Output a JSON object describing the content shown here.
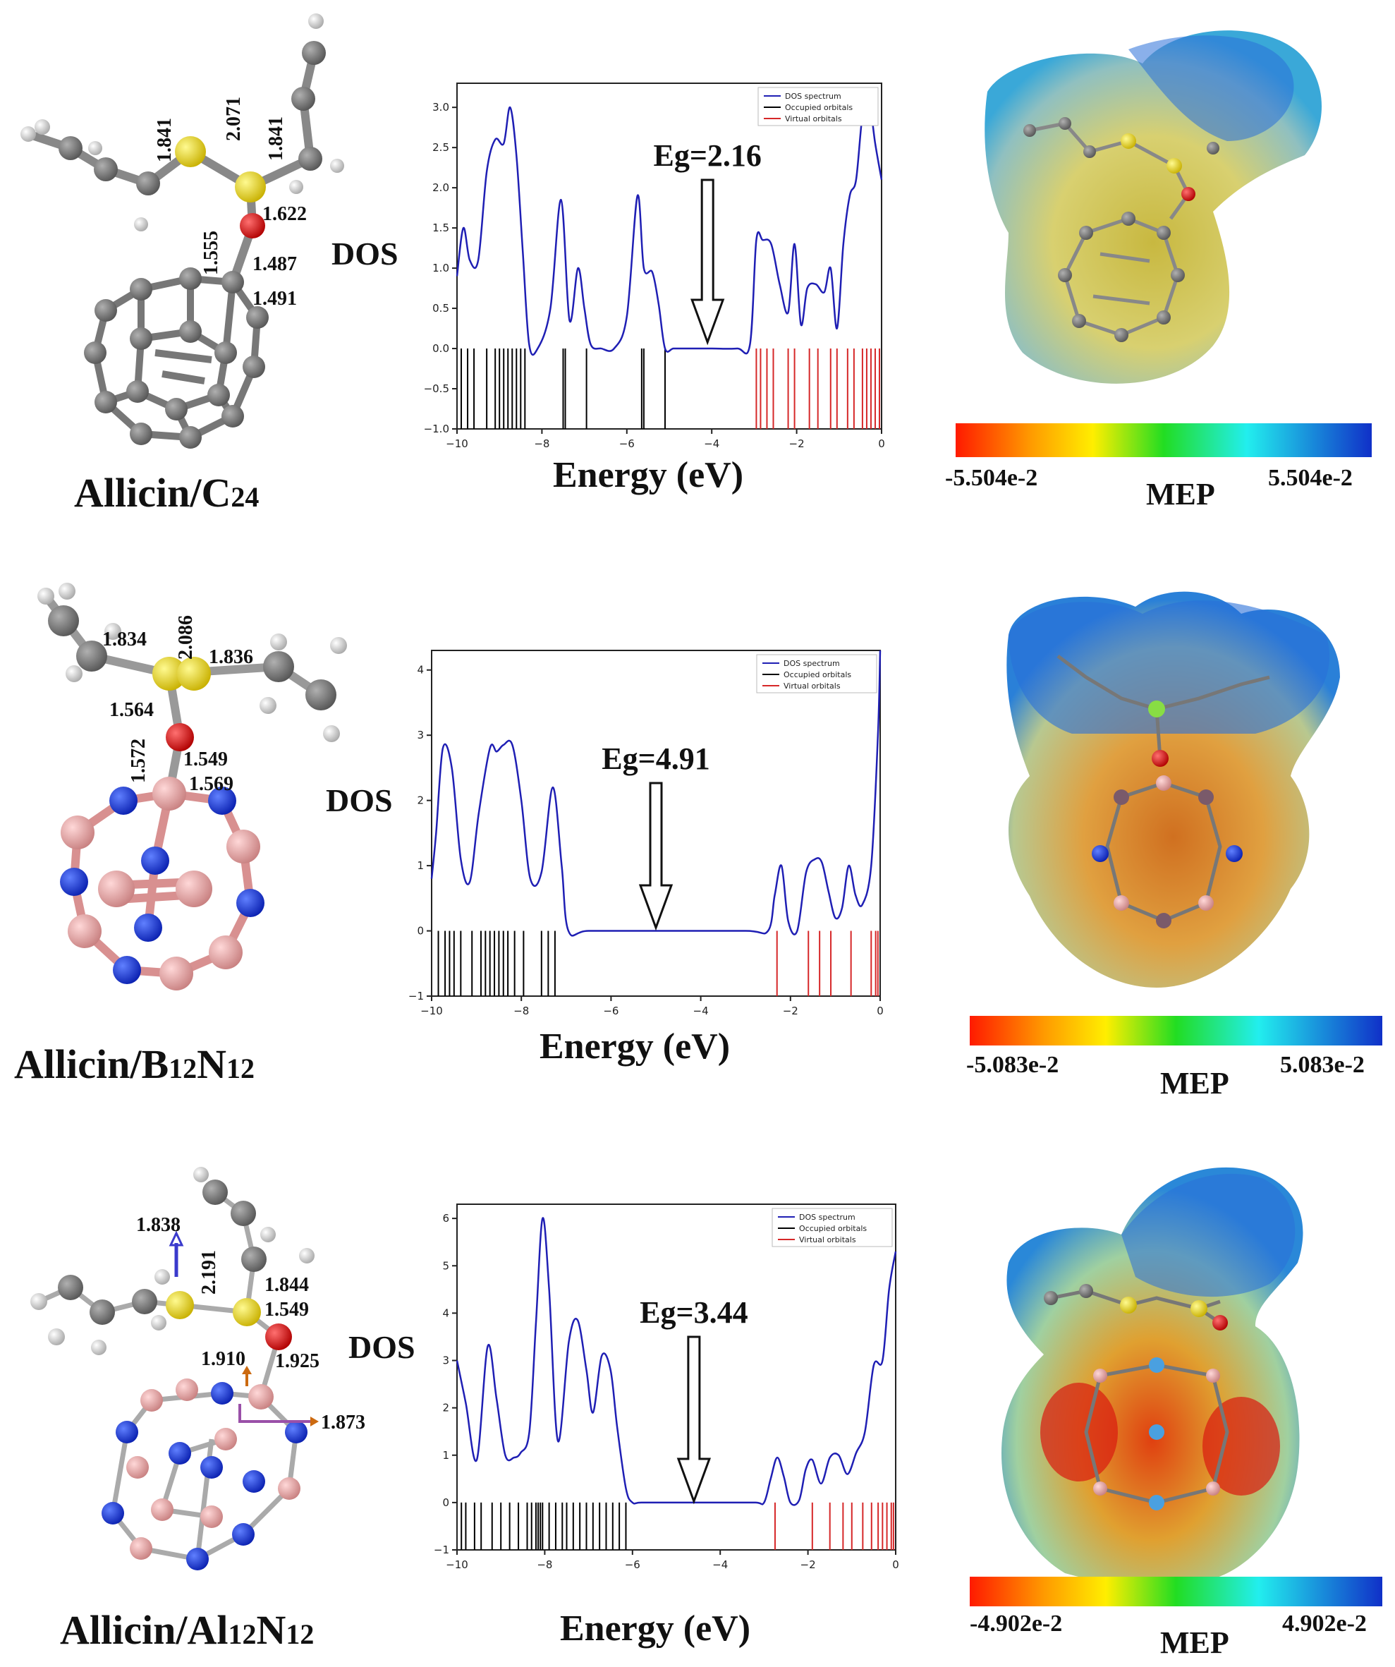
{
  "rows": [
    {
      "system": "Allicin/C24",
      "label_prefix": "Allicin/C",
      "label_sub": "24",
      "label_sub2": "",
      "bond_lengths": [
        "1.841",
        "2.071",
        "1.841",
        "1.622",
        "1.555",
        "1.487",
        "1.491"
      ],
      "dos_ylabel": "DOS",
      "dos_xlabel": "Energy (eV)",
      "eg_label": "Eg=2.16",
      "mep_min": "-5.504e-2",
      "mep_max": "5.504e-2",
      "mep_label": "MEP"
    },
    {
      "system": "Allicin/B12N12",
      "label_prefix": "Allicin/B",
      "label_sub": "12",
      "label_mid": "N",
      "label_sub2": "12",
      "bond_lengths": [
        "1.834",
        "2.086",
        "1.836",
        "1.564",
        "1.572",
        "1.549",
        "1.569"
      ],
      "dos_ylabel": "DOS",
      "dos_xlabel": "Energy (eV)",
      "eg_label": "Eg=4.91",
      "mep_min": "-5.083e-2",
      "mep_max": "5.083e-2",
      "mep_label": "MEP"
    },
    {
      "system": "Allicin/Al12N12",
      "label_prefix": "Allicin/Al",
      "label_sub": "12",
      "label_mid": "N",
      "label_sub2": "12",
      "bond_lengths": [
        "1.838",
        "2.191",
        "1.844",
        "1.549",
        "1.910",
        "1.925",
        "1.873"
      ],
      "dos_ylabel": "DOS",
      "dos_xlabel": "Energy (eV)",
      "eg_label": "Eg=3.44",
      "mep_min": "-4.902e-2",
      "mep_max": "4.902e-2",
      "mep_label": "MEP"
    }
  ],
  "legend": {
    "dos": "DOS spectrum",
    "occ": "Occupied orbitals",
    "virt": "Virtual orbitals"
  },
  "colors": {
    "dos_line": "#1f1fb4",
    "occupied": "#000000",
    "virtual": "#d62728",
    "carbon": "#707070",
    "sulfur": "#e8d62a",
    "oxygen": "#e01010",
    "boron": "#e8a6a6",
    "nitrogen": "#1a3fe0",
    "hydrogen": "#e8e8e8"
  },
  "chart_data": [
    {
      "type": "line",
      "title": "",
      "xlabel": "Energy (eV)",
      "ylabel": "DOS",
      "xlim": [
        -10,
        0
      ],
      "ylim": [
        -1.0,
        3.3
      ],
      "xticks": [
        -10,
        -8,
        -6,
        -4,
        -2,
        0
      ],
      "yticks": [
        -1.0,
        -0.5,
        0.0,
        0.5,
        1.0,
        1.5,
        2.0,
        2.5,
        3.0
      ],
      "ytick_labels": [
        "−1.0",
        "−0.5",
        "0.0",
        "0.5",
        "1.0",
        "1.5",
        "2.0",
        "2.5",
        "3.0"
      ],
      "gap_label": "Eg=2.16",
      "series": [
        {
          "name": "DOS spectrum",
          "x": [
            -10,
            -9.85,
            -9.7,
            -9.5,
            -9.3,
            -9.1,
            -8.9,
            -8.75,
            -8.6,
            -8.45,
            -8.3,
            -8.1,
            -7.8,
            -7.55,
            -7.35,
            -7.15,
            -7.0,
            -6.85,
            -6.6,
            -6.3,
            -6.0,
            -5.75,
            -5.6,
            -5.4,
            -5.25,
            -5.1,
            -4.9,
            -4.6,
            -4.0,
            -3.4,
            -3.1,
            -2.95,
            -2.8,
            -2.6,
            -2.4,
            -2.2,
            -2.05,
            -1.9,
            -1.75,
            -1.55,
            -1.35,
            -1.2,
            -1.05,
            -0.9,
            -0.75,
            -0.6,
            -0.45,
            -0.3,
            -0.15,
            0.0
          ],
          "y": [
            0.9,
            1.5,
            1.1,
            1.1,
            2.2,
            2.6,
            2.55,
            3.0,
            2.4,
            1.2,
            0.05,
            0.0,
            0.5,
            1.85,
            0.35,
            1.0,
            0.5,
            0.05,
            0.0,
            0.0,
            0.4,
            1.9,
            1.0,
            0.95,
            0.55,
            0.0,
            0.0,
            0.0,
            0.0,
            0.0,
            0.05,
            1.35,
            1.35,
            1.3,
            0.8,
            0.45,
            1.3,
            0.3,
            0.75,
            0.8,
            0.7,
            1.0,
            0.25,
            1.3,
            1.9,
            2.1,
            2.9,
            3.1,
            2.55,
            2.1
          ]
        },
        {
          "name": "Occupied orbitals",
          "x": [
            -9.9,
            -9.75,
            -9.6,
            -9.3,
            -9.1,
            -9.0,
            -8.9,
            -8.8,
            -8.7,
            -8.6,
            -8.5,
            -8.4,
            -7.5,
            -7.45,
            -6.95,
            -5.65,
            -5.6,
            -5.1
          ]
        },
        {
          "name": "Virtual orbitals",
          "x": [
            -2.95,
            -2.85,
            -2.7,
            -2.55,
            -2.2,
            -2.05,
            -1.7,
            -1.5,
            -1.2,
            -1.05,
            -0.8,
            -0.65,
            -0.45,
            -0.35,
            -0.25,
            -0.15,
            -0.05
          ]
        }
      ]
    },
    {
      "type": "line",
      "title": "",
      "xlabel": "Energy (eV)",
      "ylabel": "DOS",
      "xlim": [
        -10,
        0
      ],
      "ylim": [
        -1,
        4.3
      ],
      "xticks": [
        -10,
        -8,
        -6,
        -4,
        -2,
        0
      ],
      "yticks": [
        -1,
        0,
        1,
        2,
        3,
        4
      ],
      "ytick_labels": [
        "−1",
        "0",
        "1",
        "2",
        "3",
        "4"
      ],
      "gap_label": "Eg=4.91",
      "series": [
        {
          "name": "DOS spectrum",
          "x": [
            -10,
            -9.9,
            -9.75,
            -9.55,
            -9.35,
            -9.15,
            -8.95,
            -8.7,
            -8.55,
            -8.4,
            -8.2,
            -8.0,
            -7.8,
            -7.55,
            -7.3,
            -7.1,
            -6.95,
            -6.5,
            -5.0,
            -3.0,
            -2.5,
            -2.35,
            -2.2,
            -2.05,
            -1.85,
            -1.65,
            -1.45,
            -1.3,
            -1.15,
            -1.0,
            -0.85,
            -0.7,
            -0.55,
            -0.4,
            -0.2,
            -0.05,
            0.0
          ],
          "y": [
            0.8,
            1.5,
            2.8,
            2.5,
            1.1,
            0.75,
            1.8,
            2.8,
            2.75,
            2.85,
            2.85,
            2.0,
            0.8,
            0.9,
            2.2,
            1.0,
            0.0,
            0.0,
            0.0,
            0.0,
            0.0,
            0.55,
            1.0,
            0.15,
            0.0,
            0.9,
            1.1,
            1.05,
            0.6,
            0.2,
            0.35,
            1.0,
            0.55,
            0.4,
            1.0,
            3.0,
            4.3
          ]
        },
        {
          "name": "Occupied orbitals",
          "x": [
            -9.85,
            -9.7,
            -9.6,
            -9.5,
            -9.35,
            -9.1,
            -8.9,
            -8.8,
            -8.7,
            -8.6,
            -8.5,
            -8.4,
            -8.3,
            -8.15,
            -7.95,
            -7.55,
            -7.4,
            -7.25
          ]
        },
        {
          "name": "Virtual orbitals",
          "x": [
            -2.3,
            -1.6,
            -1.35,
            -1.1,
            -0.65,
            -0.2,
            -0.1,
            -0.05
          ]
        }
      ]
    },
    {
      "type": "line",
      "title": "",
      "xlabel": "Energy (eV)",
      "ylabel": "DOS",
      "xlim": [
        -10,
        0
      ],
      "ylim": [
        -1,
        6.3
      ],
      "xticks": [
        -10,
        -8,
        -6,
        -4,
        -2,
        0
      ],
      "yticks": [
        -1,
        0,
        1,
        2,
        3,
        4,
        5,
        6
      ],
      "ytick_labels": [
        "−1",
        "0",
        "1",
        "2",
        "3",
        "4",
        "5",
        "6"
      ],
      "gap_label": "Eg=3.44",
      "series": [
        {
          "name": "DOS spectrum",
          "x": [
            -10,
            -9.8,
            -9.55,
            -9.3,
            -9.1,
            -8.9,
            -8.7,
            -8.55,
            -8.35,
            -8.2,
            -8.05,
            -7.9,
            -7.7,
            -7.45,
            -7.25,
            -7.05,
            -6.9,
            -6.7,
            -6.5,
            -6.35,
            -6.15,
            -6.0,
            -5.8,
            -5.0,
            -4.0,
            -3.2,
            -3.0,
            -2.85,
            -2.7,
            -2.55,
            -2.4,
            -2.2,
            -2.05,
            -1.9,
            -1.7,
            -1.5,
            -1.3,
            -1.1,
            -0.9,
            -0.7,
            -0.5,
            -0.3,
            -0.15,
            0.0
          ],
          "y": [
            3.0,
            2.1,
            0.9,
            3.3,
            2.2,
            1.0,
            0.95,
            1.05,
            1.5,
            3.8,
            6.0,
            4.5,
            1.3,
            3.4,
            3.85,
            2.8,
            1.9,
            3.1,
            2.8,
            1.6,
            0.3,
            0.0,
            0.0,
            0.0,
            0.0,
            0.0,
            0.0,
            0.5,
            0.95,
            0.55,
            0.0,
            0.05,
            0.7,
            0.9,
            0.4,
            0.95,
            1.0,
            0.6,
            1.05,
            1.5,
            2.9,
            3.0,
            4.5,
            5.3
          ]
        },
        {
          "name": "Occupied orbitals",
          "x": [
            -9.9,
            -9.8,
            -9.6,
            -9.45,
            -9.2,
            -9.0,
            -8.8,
            -8.6,
            -8.4,
            -8.3,
            -8.2,
            -8.15,
            -8.1,
            -8.05,
            -7.9,
            -7.75,
            -7.6,
            -7.5,
            -7.35,
            -7.2,
            -7.05,
            -6.9,
            -6.75,
            -6.6,
            -6.45,
            -6.3,
            -6.15
          ]
        },
        {
          "name": "Virtual orbitals",
          "x": [
            -2.75,
            -1.9,
            -1.5,
            -1.2,
            -1.0,
            -0.75,
            -0.55,
            -0.4,
            -0.3,
            -0.2,
            -0.1,
            -0.05
          ]
        }
      ]
    }
  ]
}
